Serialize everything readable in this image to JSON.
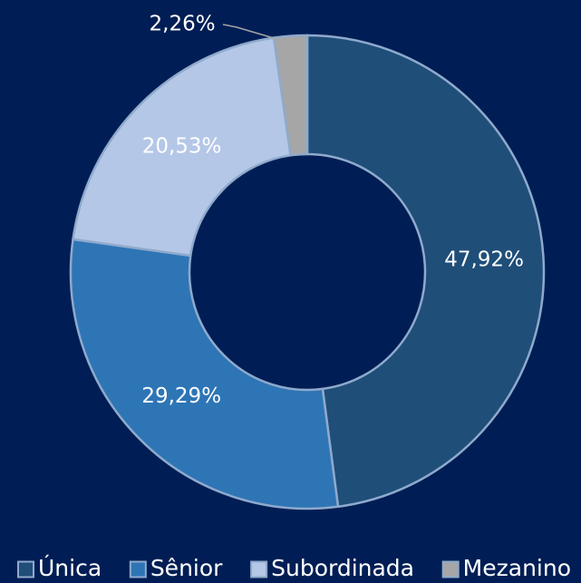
{
  "chart_data": {
    "type": "donut",
    "categories": [
      "Única",
      "Sênior",
      "Subordinada",
      "Mezanino"
    ],
    "values": [
      47.92,
      29.29,
      20.53,
      2.26
    ],
    "value_labels": [
      "47,92%",
      "29,29%",
      "20,53%",
      "2,26%"
    ],
    "colors": [
      "#1f4e79",
      "#2e75b6",
      "#b4c7e7",
      "#a6a6a6"
    ],
    "legend": "bottom"
  }
}
